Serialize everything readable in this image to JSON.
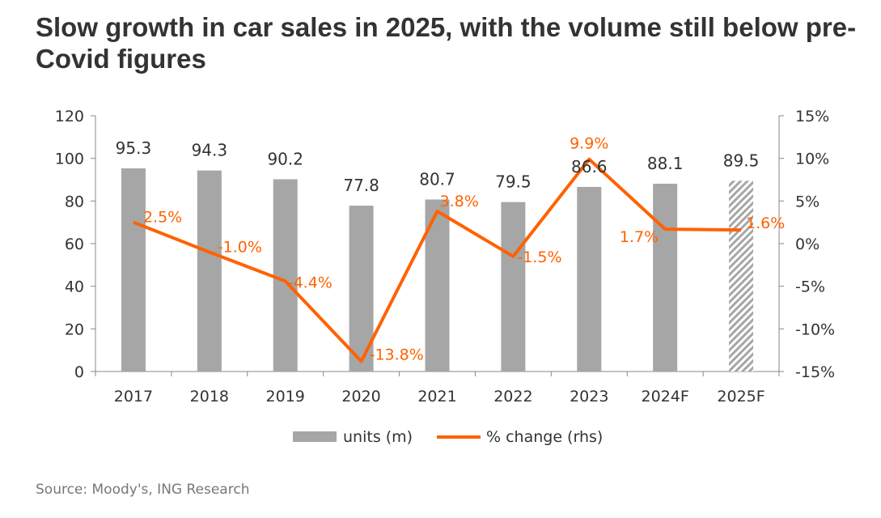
{
  "title": "Slow growth in car sales in 2025, with the volume still below pre-Covid figures",
  "source": "Source: Moody's, ING Research",
  "colors": {
    "bar": "#a6a6a6",
    "line": "#ff6200",
    "text": "#333333",
    "axis": "#888888"
  },
  "chart_data": {
    "type": "bar+line",
    "title": "Slow growth in car sales in 2025, with the volume still below pre-Covid figures",
    "categories": [
      "2017",
      "2018",
      "2019",
      "2020",
      "2021",
      "2022",
      "2023",
      "2024F",
      "2025F"
    ],
    "series": [
      {
        "name": "units (m)",
        "type": "bar",
        "axis": "left",
        "values": [
          95.3,
          94.3,
          90.2,
          77.8,
          80.7,
          79.5,
          86.6,
          88.1,
          89.5
        ],
        "labels": [
          "95.3",
          "94.3",
          "90.2",
          "77.8",
          "80.7",
          "79.5",
          "86.6",
          "88.1",
          "89.5"
        ],
        "forecast_hatched": [
          false,
          false,
          false,
          false,
          false,
          false,
          false,
          false,
          true
        ]
      },
      {
        "name": "% change (rhs)",
        "type": "line",
        "axis": "right",
        "values": [
          2.5,
          -1.0,
          -4.4,
          -13.8,
          3.8,
          -1.5,
          9.9,
          1.7,
          1.6
        ],
        "labels": [
          "2.5%",
          "-1.0%",
          "-4.4%",
          "-13.8%",
          "3.8%",
          "-1.5%",
          "9.9%",
          "1.7%",
          "1.6%"
        ]
      }
    ],
    "y_left": {
      "min": 0,
      "max": 120,
      "ticks": [
        "0",
        "20",
        "40",
        "60",
        "80",
        "100",
        "120"
      ]
    },
    "y_right": {
      "min": -15,
      "max": 15,
      "ticks": [
        "-15%",
        "-10%",
        "-5%",
        "0%",
        "5%",
        "10%",
        "15%"
      ]
    },
    "grid": false,
    "legend": "bottom"
  }
}
